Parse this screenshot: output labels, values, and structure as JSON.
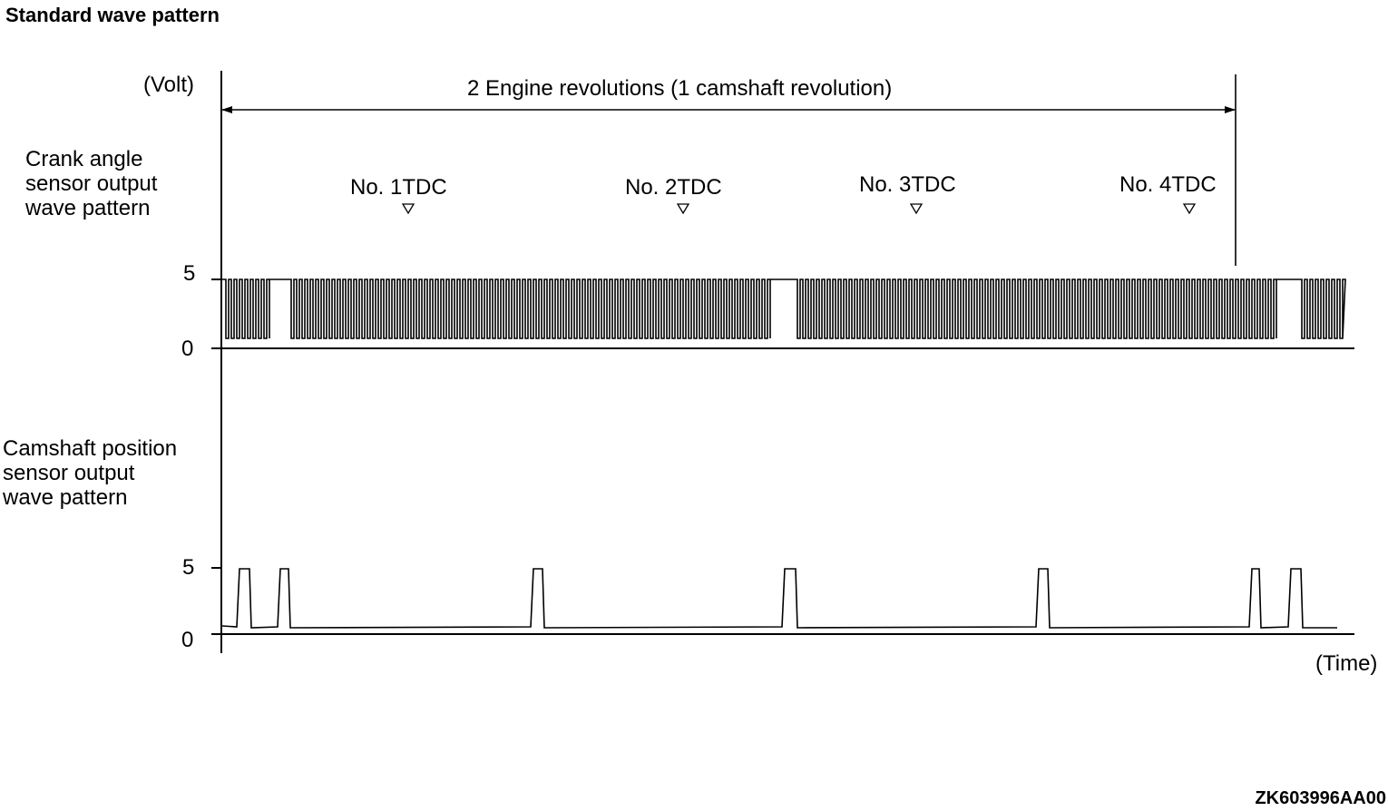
{
  "title": "Standard wave pattern",
  "y_axis_unit": "(Volt)",
  "x_axis_unit": "(Time)",
  "span_label": "2 Engine revolutions (1 camshaft revolution)",
  "crank": {
    "label_lines": [
      "Crank angle",
      "sensor output",
      "wave pattern"
    ],
    "tick_high": "5",
    "tick_low": "0"
  },
  "cam": {
    "label_lines": [
      "Camshaft position",
      "sensor output",
      "wave pattern"
    ],
    "tick_high": "5",
    "tick_low": "0"
  },
  "tdc_markers": [
    "No. 1TDC",
    "No. 2TDC",
    "No. 3TDC",
    "No. 4TDC"
  ],
  "figure_code": "ZK603996AA00"
}
